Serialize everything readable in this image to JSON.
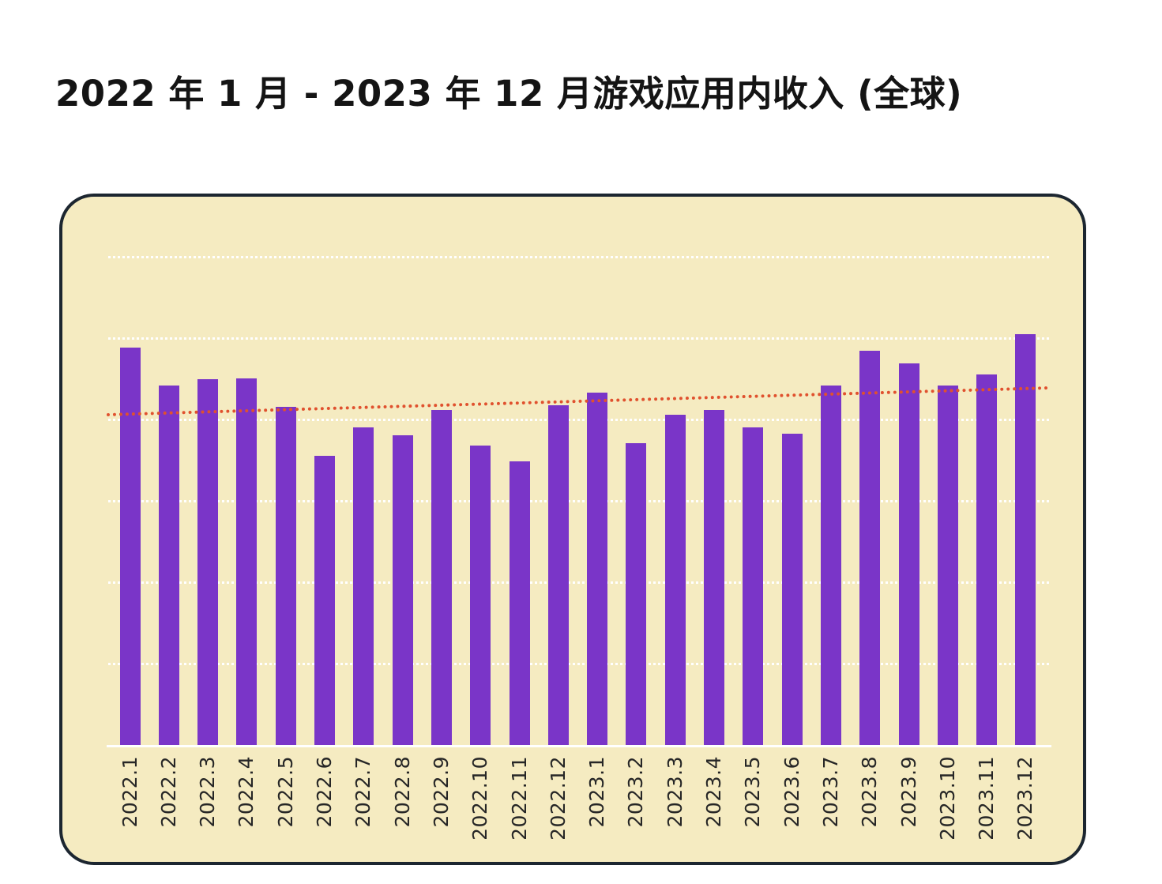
{
  "page": {
    "title": "2022 年 1 月 - 2023 年 12 月游戏应用内收入 (全球)"
  },
  "chart_data": {
    "type": "bar",
    "title": "2022 年 1 月 - 2023 年 12 月游戏应用内收入 (全球)",
    "subtitle": "",
    "legend": "none",
    "categories": [
      "2022.1",
      "2022.2",
      "2022.3",
      "2022.4",
      "2022.5",
      "2022.6",
      "2022.7",
      "2022.8",
      "2022.9",
      "2022.10",
      "2022.11",
      "2022.12",
      "2023.1",
      "2023.2",
      "2023.3",
      "2023.4",
      "2023.5",
      "2023.6",
      "2023.7",
      "2023.8",
      "2023.9",
      "2023.10",
      "2023.11",
      "2023.12"
    ],
    "values": [
      4.9,
      4.44,
      4.51,
      4.52,
      4.17,
      3.57,
      3.92,
      3.83,
      4.14,
      3.7,
      3.5,
      4.19,
      4.35,
      3.73,
      4.08,
      4.14,
      3.92,
      3.84,
      4.44,
      4.86,
      4.71,
      4.44,
      4.57,
      5.07
    ],
    "value_note": "no y-axis labels shown; values estimated in gridline units (1 unit = 1 gridline spacing)",
    "trendline": {
      "start": 4.08,
      "end": 4.41,
      "style": "dotted"
    },
    "x_axis": {
      "label_rotation_deg": -90,
      "tick_labels_visible": true
    },
    "y_axis": {
      "tick_labels_visible": false,
      "ylim": [
        0,
        6.76
      ],
      "gridlines": [
        1,
        2,
        3,
        4,
        5,
        6
      ],
      "grid_style": "dotted"
    },
    "colors": {
      "bar": "#7a35c8",
      "card_background": "#f5ebc1",
      "card_border": "#1c2630",
      "gridline": "#ffffff",
      "axis_line": "#ffffff",
      "trend": "#e0512e",
      "tick_label": "#262626",
      "title": "#141414",
      "page_background": "#ffffff"
    }
  }
}
